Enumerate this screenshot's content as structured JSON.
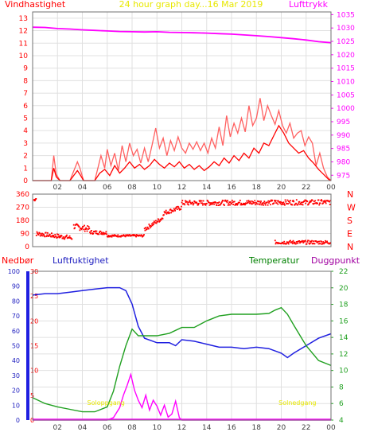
{
  "colors": {
    "wind": "#ff0000",
    "gust": "#ff6060",
    "pressure": "#ff00ff",
    "winddir": "#ff0000",
    "precip": "#ff00ff",
    "humidity": "#2020e0",
    "temperature": "#20a020",
    "dewpoint": "#a000a0",
    "sunrise": "#e8e800",
    "grid": "#e0e0e0"
  },
  "chart_data": [
    {
      "type": "line",
      "title": "24 hour graph day...16 Mar 2019",
      "left_label": "Vindhastighet",
      "right_label": "Lufttrykk",
      "x_ticks": [
        "02",
        "04",
        "06",
        "08",
        "10",
        "12",
        "14",
        "16",
        "18",
        "20",
        "22",
        "00"
      ],
      "y_left_ticks": [
        "0",
        "1",
        "2",
        "3",
        "4",
        "5",
        "6",
        "7",
        "8",
        "9",
        "10",
        "11",
        "12",
        "13"
      ],
      "y_right_ticks": [
        "975",
        "980",
        "985",
        "990",
        "995",
        "1000",
        "1005",
        "1010",
        "1015",
        "1020",
        "1025",
        "1030",
        "1035"
      ],
      "ylim_left": [
        0,
        13.5
      ],
      "ylim_right": [
        973,
        1036
      ],
      "xlim": [
        0,
        24
      ],
      "series": [
        {
          "key": "pressure",
          "axis": "right",
          "x": [
            0,
            1,
            2,
            3,
            4,
            5,
            6,
            7,
            8,
            9,
            10,
            11,
            12,
            13,
            14,
            15,
            16,
            17,
            18,
            19,
            20,
            21,
            22,
            23,
            24
          ],
          "y": [
            1030.3,
            1030.2,
            1029.8,
            1029.6,
            1029.3,
            1029.1,
            1028.9,
            1028.7,
            1028.6,
            1028.5,
            1028.6,
            1028.4,
            1028.3,
            1028.2,
            1028.1,
            1027.9,
            1027.7,
            1027.4,
            1027.1,
            1026.8,
            1026.4,
            1026.0,
            1025.5,
            1024.9,
            1024.5
          ]
        },
        {
          "key": "gust",
          "axis": "left",
          "x": [
            0,
            1,
            1.5,
            1.7,
            1.9,
            2.2,
            3,
            3.6,
            3.8,
            4.1,
            5,
            5.3,
            5.5,
            5.8,
            6,
            6.3,
            6.6,
            6.9,
            7.2,
            7.5,
            7.8,
            8.1,
            8.4,
            8.7,
            9,
            9.3,
            9.6,
            9.9,
            10.2,
            10.5,
            10.8,
            11.1,
            11.4,
            11.7,
            12,
            12.3,
            12.6,
            12.9,
            13.2,
            13.5,
            13.8,
            14.1,
            14.4,
            14.7,
            15,
            15.3,
            15.6,
            15.9,
            16.2,
            16.5,
            16.8,
            17.1,
            17.4,
            17.7,
            18,
            18.3,
            18.6,
            18.9,
            19.2,
            19.5,
            19.8,
            20.1,
            20.4,
            20.7,
            21,
            21.3,
            21.6,
            21.9,
            22.2,
            22.5,
            22.8,
            23.1,
            23.4,
            23.7,
            24
          ],
          "y": [
            0,
            0,
            0,
            2,
            0.5,
            0,
            0,
            1.5,
            1,
            0,
            0,
            1.2,
            2,
            1,
            2.5,
            1.2,
            2.2,
            0.8,
            2.8,
            1.5,
            3.0,
            2.0,
            2.5,
            1.4,
            2.6,
            1.5,
            2.8,
            4.2,
            2.6,
            3.4,
            2.0,
            3.2,
            2.4,
            3.5,
            2.6,
            2.2,
            3.0,
            2.5,
            3.1,
            2.4,
            3.0,
            2.2,
            3.4,
            2.6,
            4.3,
            2.8,
            5.2,
            3.5,
            4.6,
            3.8,
            5.0,
            3.9,
            6.0,
            4.4,
            5.0,
            6.6,
            4.8,
            6.0,
            5.2,
            4.5,
            5.6,
            4.4,
            3.8,
            4.6,
            3.4,
            3.8,
            4.0,
            2.8,
            3.5,
            3.0,
            1.2,
            2.2,
            1.0,
            0.3,
            0
          ]
        },
        {
          "key": "wind",
          "axis": "left",
          "x": [
            0,
            1,
            1.5,
            1.7,
            1.9,
            2.2,
            3,
            3.6,
            3.8,
            4.1,
            5,
            5.4,
            5.8,
            6.2,
            6.6,
            7,
            7.4,
            7.8,
            8.2,
            8.6,
            9,
            9.4,
            9.8,
            10.2,
            10.6,
            11,
            11.4,
            11.8,
            12.2,
            12.6,
            13,
            13.4,
            13.8,
            14.2,
            14.6,
            15,
            15.4,
            15.8,
            16.2,
            16.6,
            17,
            17.4,
            17.8,
            18.2,
            18.6,
            19,
            19.4,
            19.8,
            20.2,
            20.6,
            21,
            21.4,
            21.8,
            22.2,
            22.6,
            23,
            23.4,
            23.8,
            24
          ],
          "y": [
            0,
            0,
            0,
            1,
            0.3,
            0,
            0,
            0.8,
            0.5,
            0,
            0,
            0.6,
            0.9,
            0.4,
            1.2,
            0.6,
            1.0,
            1.5,
            1.0,
            1.3,
            0.9,
            1.2,
            1.7,
            1.3,
            1.0,
            1.4,
            1.1,
            1.5,
            1.0,
            1.3,
            0.9,
            1.2,
            0.8,
            1.1,
            1.5,
            1.2,
            1.8,
            1.4,
            2.0,
            1.6,
            2.2,
            1.8,
            2.6,
            2.2,
            3.0,
            2.8,
            3.6,
            4.4,
            3.8,
            3.0,
            2.6,
            2.2,
            2.4,
            1.8,
            1.4,
            0.9,
            0.5,
            0.1,
            0
          ]
        }
      ]
    },
    {
      "type": "scatter",
      "y_left_ticks": [
        "360",
        "270",
        "180",
        "90",
        "0"
      ],
      "y_right_ticks": [
        "N",
        "W",
        "S",
        "E",
        "N"
      ],
      "ylim": [
        0,
        360
      ],
      "xlim": [
        0,
        24
      ],
      "series": [
        {
          "key": "winddir",
          "segments": [
            {
              "x0": 0.1,
              "x1": 0.3,
              "y0": 320,
              "y1": 330,
              "spread": 20
            },
            {
              "x0": 0.3,
              "x1": 3.2,
              "y0": 90,
              "y1": 60,
              "spread": 30
            },
            {
              "x0": 3.3,
              "x1": 4.6,
              "y0": 140,
              "y1": 120,
              "spread": 40
            },
            {
              "x0": 4.6,
              "x1": 6.0,
              "y0": 100,
              "y1": 95,
              "spread": 25
            },
            {
              "x0": 6.0,
              "x1": 9.0,
              "y0": 75,
              "y1": 75,
              "spread": 15
            },
            {
              "x0": 9.0,
              "x1": 10.5,
              "y0": 120,
              "y1": 200,
              "spread": 30
            },
            {
              "x0": 10.5,
              "x1": 12.0,
              "y0": 230,
              "y1": 270,
              "spread": 30
            },
            {
              "x0": 12.0,
              "x1": 24.0,
              "y0": 300,
              "y1": 305,
              "spread": 35
            },
            {
              "x0": 19.5,
              "x1": 24.0,
              "y0": 30,
              "y1": 30,
              "spread": 25
            }
          ]
        }
      ]
    },
    {
      "type": "line",
      "left_labels": [
        "Nedbør",
        "Luftfuktighet"
      ],
      "right_labels": [
        "Temperatur",
        "Duggpunkt"
      ],
      "x_ticks": [
        "02",
        "04",
        "06",
        "08",
        "10",
        "12",
        "14",
        "16",
        "18",
        "20",
        "22",
        "00"
      ],
      "y_humidity_ticks": [
        "0",
        "10",
        "20",
        "30",
        "40",
        "50",
        "60",
        "70",
        "80",
        "90",
        "100"
      ],
      "y_precip_ticks": [
        "0",
        "5",
        "10",
        "15",
        "20",
        "25",
        "30"
      ],
      "y_temp_ticks": [
        "4",
        "6",
        "8",
        "10",
        "12",
        "14",
        "16",
        "18",
        "20",
        "22"
      ],
      "ylim_humidity": [
        0,
        100
      ],
      "ylim_temp": [
        4,
        22
      ],
      "xlim": [
        0,
        24
      ],
      "annotations": [
        {
          "text": "Soloppgang",
          "x": 5.9
        },
        {
          "text": "Solnedgang",
          "x": 21.3
        }
      ],
      "series": [
        {
          "key": "humidity",
          "x": [
            0,
            1,
            2,
            3,
            4,
            5,
            6,
            7,
            7.5,
            8,
            8.5,
            9,
            10,
            11,
            11.5,
            12,
            13,
            14,
            15,
            16,
            17,
            18,
            19,
            20,
            20.5,
            21,
            22,
            23,
            24
          ],
          "y": [
            84,
            85,
            85,
            86,
            87,
            88,
            89,
            89,
            87,
            78,
            63,
            55,
            52,
            52,
            50,
            54,
            53,
            51,
            49,
            49,
            48,
            49,
            48,
            45,
            42,
            45,
            50,
            55,
            58
          ]
        },
        {
          "key": "temperature",
          "x": [
            0,
            1,
            2,
            3,
            4,
            5,
            6,
            6.5,
            7,
            7.5,
            8,
            8.5,
            9,
            10,
            11,
            12,
            13,
            14,
            15,
            16,
            17,
            18,
            19,
            19.5,
            20,
            20.5,
            21,
            22,
            23,
            24
          ],
          "y": [
            6.7,
            6.0,
            5.6,
            5.3,
            5.0,
            5.0,
            5.6,
            7.5,
            10.5,
            13.0,
            15.0,
            14.2,
            14.2,
            14.2,
            14.5,
            15.2,
            15.2,
            16.0,
            16.6,
            16.8,
            16.8,
            16.8,
            16.9,
            17.3,
            17.6,
            16.8,
            15.5,
            13.0,
            11.2,
            10.6
          ]
        },
        {
          "key": "precip",
          "x": [
            0,
            6,
            6.5,
            7,
            7.3,
            7.6,
            7.9,
            8.2,
            8.5,
            8.8,
            9.1,
            9.4,
            9.7,
            10,
            10.3,
            10.6,
            10.9,
            11.2,
            11.5,
            11.8,
            12,
            24
          ],
          "y": [
            0,
            0,
            0.5,
            2.5,
            5,
            7,
            9.2,
            6,
            4,
            2.5,
            5,
            2,
            4,
            2.8,
            1,
            3,
            0.6,
            1.2,
            3.8,
            0.5,
            0,
            0
          ]
        }
      ]
    }
  ]
}
